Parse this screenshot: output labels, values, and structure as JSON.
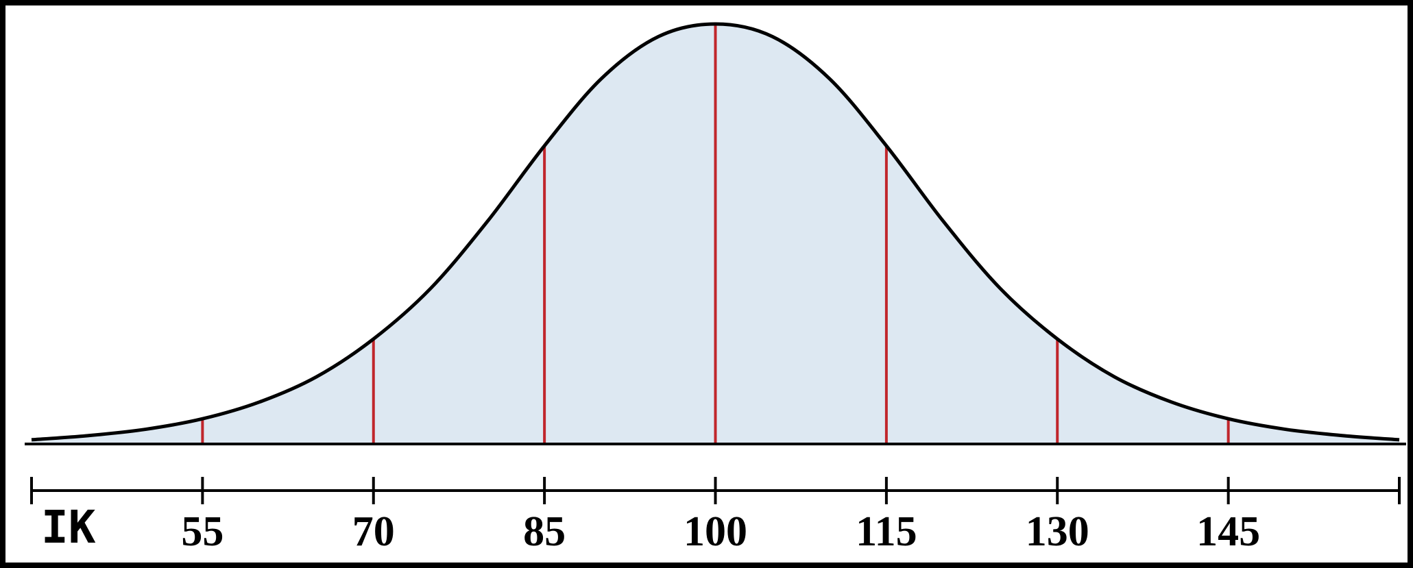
{
  "chart_data": {
    "type": "line",
    "x_label": "IK",
    "x": [
      40,
      45,
      50,
      55,
      60,
      65,
      70,
      75,
      80,
      85,
      90,
      95,
      100,
      105,
      110,
      115,
      120,
      125,
      130,
      135,
      140,
      145,
      150,
      155,
      160
    ],
    "values": [
      0.01,
      0.02,
      0.035,
      0.06,
      0.1,
      0.16,
      0.25,
      0.37,
      0.53,
      0.71,
      0.87,
      0.97,
      1.0,
      0.97,
      0.87,
      0.71,
      0.53,
      0.37,
      0.25,
      0.16,
      0.1,
      0.06,
      0.035,
      0.02,
      0.01
    ],
    "color": "#000000",
    "fill": "#dde8f2",
    "divider_color": "#c0262c",
    "xlim": [
      40,
      160
    ],
    "xticks": [
      55,
      70,
      85,
      100,
      115,
      130,
      145
    ],
    "ylim": [
      0,
      1
    ]
  }
}
